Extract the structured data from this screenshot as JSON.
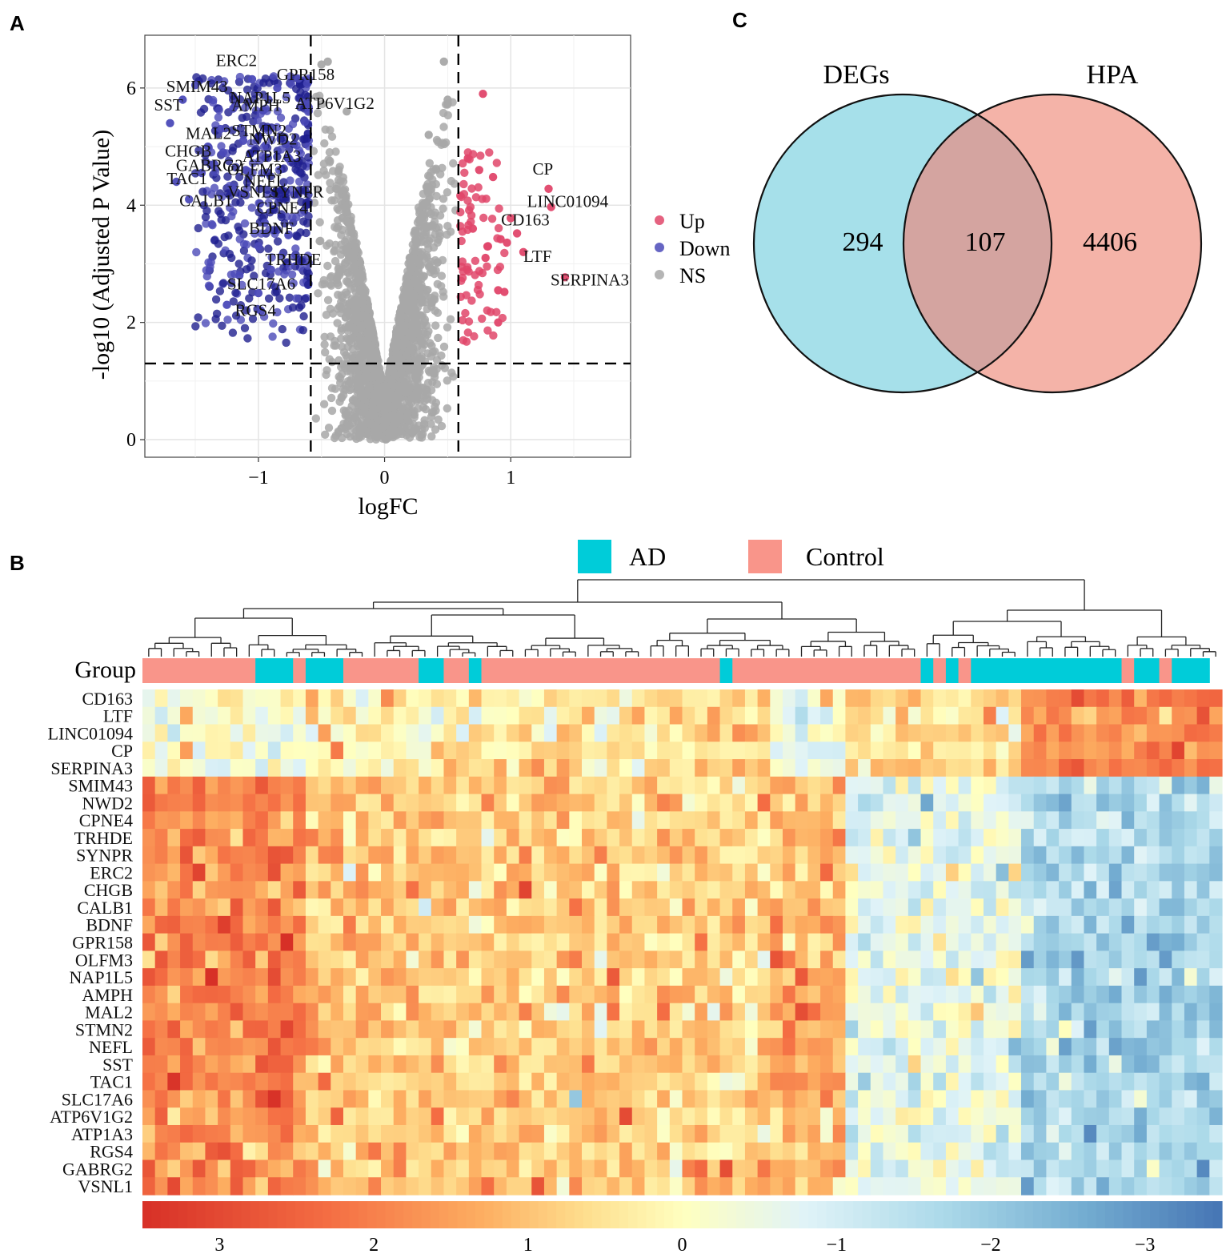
{
  "panels": {
    "a": {
      "letter": "A"
    },
    "b": {
      "letter": "B"
    },
    "c": {
      "letter": "C"
    }
  },
  "chart_data": [
    {
      "id": "volcano",
      "type": "scatter",
      "title": "",
      "xlabel": "logFC",
      "ylabel": "-log10 (Adjusted P Value)",
      "xlim": [
        -1.9,
        1.95
      ],
      "ylim": [
        -0.3,
        6.9
      ],
      "x_ticks": [
        -1,
        0,
        1
      ],
      "y_ticks": [
        0,
        2,
        4,
        6
      ],
      "x_tick_labels": [
        "−1",
        "0",
        "1"
      ],
      "y_tick_labels": [
        "0",
        "2",
        "4",
        "6"
      ],
      "thresholds": {
        "logFC": [
          -0.585,
          0.585
        ],
        "neg_log10_p": 1.3
      },
      "legend": {
        "position": "right",
        "items": [
          {
            "label": "Up",
            "color": "#e0466a"
          },
          {
            "label": "Down",
            "color": "#4b4ab8"
          },
          {
            "label": "NS",
            "color": "#a8a8a8"
          }
        ]
      },
      "colors": {
        "up": "#e0466a",
        "down": "#4b4ab8",
        "ns": "#a8a8a8",
        "down_dense": "#1f1f8f"
      },
      "series": [
        {
          "name": "Up",
          "points": [
            [
              1.3,
              4.28
            ],
            [
              1.32,
              3.97
            ],
            [
              1.43,
              2.77
            ],
            [
              1.05,
              3.52
            ],
            [
              1.0,
              3.78
            ],
            [
              0.97,
              3.36
            ],
            [
              0.9,
              2.55
            ],
            [
              0.95,
              2.52
            ],
            [
              0.78,
              5.9
            ],
            [
              0.86,
              4.48
            ],
            [
              0.92,
              3.42
            ],
            [
              0.8,
              3.1
            ],
            [
              1.1,
              3.2
            ],
            [
              0.9,
              2.0
            ],
            [
              0.75,
              4.6
            ],
            [
              0.7,
              3.6
            ],
            [
              0.66,
              4.8
            ],
            [
              0.82,
              3.3
            ]
          ]
        },
        {
          "name": "Down",
          "points": [
            [
              -1.7,
              5.4
            ],
            [
              -1.5,
              6.05
            ],
            [
              -1.6,
              5.8
            ],
            [
              -1.55,
              4.1
            ],
            [
              -1.65,
              4.4
            ],
            [
              -1.3,
              5.3
            ],
            [
              -1.28,
              4.9
            ],
            [
              -1.2,
              5.65
            ],
            [
              -1.05,
              6.15
            ],
            [
              -1.15,
              2.8
            ],
            [
              -1.25,
              2.3
            ],
            [
              -1.1,
              4.6
            ],
            [
              -1.0,
              2.5
            ],
            [
              -1.35,
              4.7
            ],
            [
              -1.4,
              5.0
            ],
            [
              -1.2,
              4.3
            ],
            [
              -0.95,
              3.7
            ],
            [
              -1.0,
              3.3
            ],
            [
              -0.9,
              2.9
            ],
            [
              -1.12,
              5.1
            ],
            [
              -1.45,
              4.55
            ],
            [
              -0.98,
              2.2
            ],
            [
              -0.92,
              5.8
            ],
            [
              -0.85,
              6.0
            ]
          ]
        },
        {
          "name": "NS",
          "points": [
            [
              -0.45,
              6.45
            ],
            [
              -0.5,
              6.4
            ],
            [
              0.47,
              6.45
            ],
            [
              0.5,
              5.8
            ],
            [
              0.35,
              5.2
            ],
            [
              -0.3,
              5.6
            ]
          ]
        }
      ],
      "ns_cloud": {
        "count": 2600
      },
      "down_cloud": {
        "count": 430
      },
      "up_cloud": {
        "count": 70
      },
      "gene_labels": [
        {
          "name": "ERC2",
          "side": "down",
          "x": -1.02,
          "y": 6.35,
          "dx": -50,
          "dy": -2
        },
        {
          "name": "GPR158",
          "side": "down",
          "x": -0.95,
          "y": 6.2,
          "dx": 15,
          "dy": 5
        },
        {
          "name": "SMIM43",
          "side": "down",
          "x": -1.35,
          "y": 6.0,
          "dx": -60,
          "dy": 5
        },
        {
          "name": "NAP1L5",
          "side": "down",
          "x": -1.1,
          "y": 5.9,
          "dx": -20,
          "dy": 12
        },
        {
          "name": "ATP6V1G2",
          "side": "down",
          "x": -0.9,
          "y": 5.85,
          "dx": 30,
          "dy": 15
        },
        {
          "name": "SST",
          "side": "down",
          "x": -1.7,
          "y": 5.4,
          "dx": -20,
          "dy": -16
        },
        {
          "name": "AMPH",
          "side": "down",
          "x": -1.15,
          "y": 5.65,
          "dx": -10,
          "dy": 3
        },
        {
          "name": "MAL2",
          "side": "down",
          "x": -1.45,
          "y": 5.2,
          "dx": -20,
          "dy": 5
        },
        {
          "name": "STMN2",
          "side": "down",
          "x": -1.15,
          "y": 5.25,
          "dx": -10,
          "dy": 5
        },
        {
          "name": "NWD2",
          "side": "down",
          "x": -0.95,
          "y": 5.2,
          "dx": -20,
          "dy": 12
        },
        {
          "name": "CHGB",
          "side": "down",
          "x": -1.55,
          "y": 4.9,
          "dx": -30,
          "dy": 5
        },
        {
          "name": "ATP1A3",
          "side": "down",
          "x": -1.0,
          "y": 4.85,
          "dx": -20,
          "dy": 8
        },
        {
          "name": "GABRG2",
          "side": "down",
          "x": -1.4,
          "y": 4.65,
          "dx": -40,
          "dy": 5
        },
        {
          "name": "OLFM3",
          "side": "down",
          "x": -1.12,
          "y": 4.6,
          "dx": -20,
          "dy": 6
        },
        {
          "name": "NEFL",
          "side": "down",
          "x": -1.05,
          "y": 4.4,
          "dx": -10,
          "dy": 6
        },
        {
          "name": "SYNPR",
          "side": "down",
          "x": -0.88,
          "y": 4.3,
          "dx": -5,
          "dy": 12
        },
        {
          "name": "TAC1",
          "side": "down",
          "x": -1.6,
          "y": 4.4,
          "dx": -20,
          "dy": 3
        },
        {
          "name": "VSNL1",
          "side": "down",
          "x": -1.15,
          "y": 4.2,
          "dx": -15,
          "dy": 5
        },
        {
          "name": "CALB1",
          "side": "down",
          "x": -1.5,
          "y": 4.05,
          "dx": -20,
          "dy": 5
        },
        {
          "name": "CPNE4",
          "side": "down",
          "x": -0.92,
          "y": 4.0,
          "dx": -15,
          "dy": 10
        },
        {
          "name": "BDNF",
          "side": "down",
          "x": -0.98,
          "y": 3.55,
          "dx": -15,
          "dy": 3
        },
        {
          "name": "TRHDE",
          "side": "down",
          "x": -0.85,
          "y": 3.05,
          "dx": -15,
          "dy": 5
        },
        {
          "name": "SLC17A6",
          "side": "down",
          "x": -1.12,
          "y": 2.6,
          "dx": -20,
          "dy": 3
        },
        {
          "name": "RGS4",
          "side": "down",
          "x": -1.25,
          "y": 2.25,
          "dx": 10,
          "dy": 10
        },
        {
          "name": "CP",
          "side": "up",
          "x": 1.3,
          "y": 4.28,
          "dx": -20,
          "dy": -18
        },
        {
          "name": "LINC01094",
          "side": "up",
          "x": 1.32,
          "y": 3.97,
          "dx": -30,
          "dy": 0
        },
        {
          "name": "CD163",
          "side": "up",
          "x": 1.05,
          "y": 3.52,
          "dx": -20,
          "dy": -10
        },
        {
          "name": "LTF",
          "side": "up",
          "x": 1.1,
          "y": 3.2,
          "dx": 0,
          "dy": 12
        },
        {
          "name": "SERPINA3",
          "side": "up",
          "x": 1.43,
          "y": 2.77,
          "dx": -18,
          "dy": 10
        }
      ]
    },
    {
      "id": "heatmap",
      "type": "heatmap",
      "legend": {
        "position": "top",
        "items": [
          {
            "label": "AD",
            "color": "#00ccd9"
          },
          {
            "label": "Control",
            "color": "#f9958a"
          }
        ]
      },
      "group_label": "Group",
      "rows": [
        "CD163",
        "LTF",
        "LINC01094",
        "CP",
        "SERPINA3",
        "SMIM43",
        "NWD2",
        "CPNE4",
        "TRHDE",
        "SYNPR",
        "ERC2",
        "CHGB",
        "CALB1",
        "BDNF",
        "GPR158",
        "OLFM3",
        "NAP1L5",
        "AMPH",
        "MAL2",
        "STMN2",
        "NEFL",
        "SST",
        "TAC1",
        "SLC17A6",
        "ATP6V1G2",
        "ATP1A3",
        "RGS4",
        "GABRG2",
        "VSNL1"
      ],
      "n_columns": 86,
      "up_row_count": 5,
      "groups_runs": [
        {
          "group": "Control",
          "count": 9
        },
        {
          "group": "AD",
          "count": 3
        },
        {
          "group": "Control",
          "count": 1
        },
        {
          "group": "AD",
          "count": 3
        },
        {
          "group": "Control",
          "count": 6
        },
        {
          "group": "AD",
          "count": 2
        },
        {
          "group": "Control",
          "count": 2
        },
        {
          "group": "AD",
          "count": 1
        },
        {
          "group": "Control",
          "count": 19
        },
        {
          "group": "AD",
          "count": 1
        },
        {
          "group": "Control",
          "count": 15
        },
        {
          "group": "AD",
          "count": 1
        },
        {
          "group": "Control",
          "count": 1
        },
        {
          "group": "AD",
          "count": 1
        },
        {
          "group": "Control",
          "count": 1
        },
        {
          "group": "AD",
          "count": 12
        },
        {
          "group": "Control",
          "count": 1
        },
        {
          "group": "AD",
          "count": 2
        },
        {
          "group": "Control",
          "count": 1
        },
        {
          "group": "AD",
          "count": 3
        }
      ],
      "column_zones": [
        {
          "end": 13,
          "up": -0.3,
          "down": 1.9
        },
        {
          "end": 24,
          "up": 0.3,
          "down": 1.0
        },
        {
          "end": 50,
          "up": 0.5,
          "down": 0.8
        },
        {
          "end": 56,
          "up": -0.5,
          "down": 1.2
        },
        {
          "end": 70,
          "up": 0.6,
          "down": -0.6
        },
        {
          "end": 86,
          "up": 1.9,
          "down": -1.7
        }
      ],
      "color_scale": {
        "domain": [
          3.5,
          -3.5
        ],
        "stops": [
          {
            "v": 3.5,
            "c": "#d73027"
          },
          {
            "v": 2.3,
            "c": "#f46d43"
          },
          {
            "v": 1.3,
            "c": "#fdae61"
          },
          {
            "v": 0.6,
            "c": "#fee090"
          },
          {
            "v": 0,
            "c": "#ffffbf"
          },
          {
            "v": -0.8,
            "c": "#e0f3f8"
          },
          {
            "v": -1.7,
            "c": "#abd9e9"
          },
          {
            "v": -2.6,
            "c": "#74add1"
          },
          {
            "v": -3.5,
            "c": "#4575b4"
          }
        ],
        "ticks": [
          {
            "v": 3,
            "label": "3"
          },
          {
            "v": 2,
            "label": "2"
          },
          {
            "v": 1,
            "label": "1"
          },
          {
            "v": 0,
            "label": "0"
          },
          {
            "v": -1,
            "label": "−1"
          },
          {
            "v": -2,
            "label": "−2"
          },
          {
            "v": -3,
            "label": "−3"
          }
        ]
      }
    },
    {
      "id": "venn",
      "type": "venn",
      "sets": [
        {
          "name": "DEGs",
          "only": 294,
          "color": "#a6e0ea"
        },
        {
          "name": "HPA",
          "only": 4406,
          "color": "#f4b3a8"
        }
      ],
      "intersection": 107,
      "intersection_color": "#d4a4a0"
    }
  ]
}
